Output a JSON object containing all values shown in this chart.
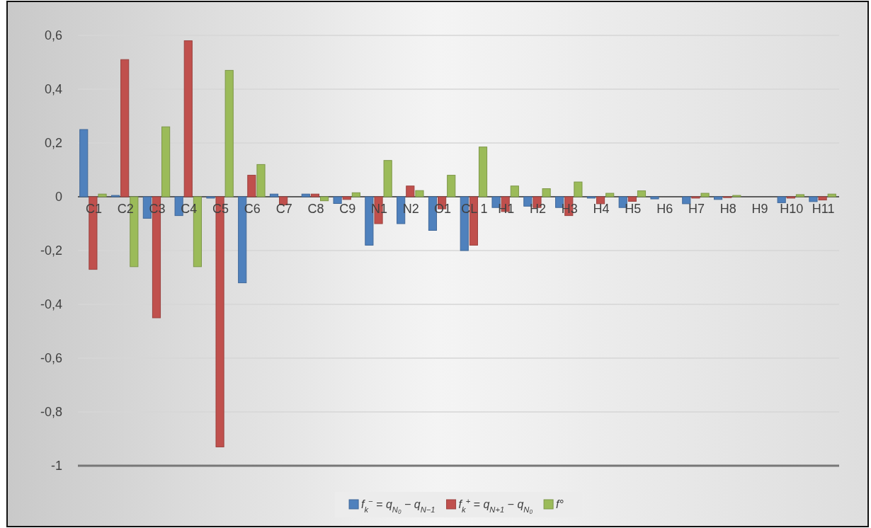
{
  "chart_data": {
    "type": "bar",
    "categories": [
      "C1",
      "C2",
      "C3",
      "C4",
      "C5",
      "C6",
      "C7",
      "C8",
      "C9",
      "N1",
      "N2",
      "O1",
      "CL 1",
      "H1",
      "H2",
      "H3",
      "H4",
      "H5",
      "H6",
      "H7",
      "H8",
      "H9",
      "H10",
      "H11"
    ],
    "series": [
      {
        "name": "f$_{k}$$^{−}$ = q$_{N₀}$ − q$_{N−1}$",
        "color": "#4f81bd",
        "values": [
          0.25,
          0.005,
          -0.08,
          -0.07,
          -0.005,
          -0.32,
          0.01,
          0.01,
          -0.025,
          -0.18,
          -0.1,
          -0.125,
          -0.2,
          -0.04,
          -0.035,
          -0.04,
          -0.005,
          -0.04,
          -0.008,
          -0.026,
          -0.01,
          0,
          -0.022,
          -0.018
        ]
      },
      {
        "name": "f$_{k}$$^{+}$ = q$_{N+1}$ − q$_{N₀}$",
        "color": "#c0504d",
        "values": [
          -0.27,
          0.51,
          -0.45,
          0.58,
          -0.93,
          0.08,
          -0.03,
          0.01,
          -0.01,
          -0.1,
          0.04,
          -0.045,
          -0.18,
          -0.055,
          -0.04,
          -0.07,
          -0.026,
          -0.017,
          0,
          -0.005,
          -0.003,
          0,
          -0.005,
          -0.012
        ]
      },
      {
        "name": "f°",
        "color": "#9bbb59",
        "values": [
          0.01,
          -0.26,
          0.26,
          -0.26,
          0.47,
          0.12,
          0,
          -0.015,
          0.015,
          0.135,
          0.023,
          0.08,
          0.185,
          0.04,
          0.03,
          0.055,
          0.013,
          0.022,
          0,
          0.013,
          0.005,
          0,
          0.008,
          0.01
        ]
      }
    ],
    "ylim": [
      -1,
      0.6
    ],
    "yticks": [
      {
        "value": -1,
        "label": "-1"
      },
      {
        "value": -0.8,
        "label": "-0,8"
      },
      {
        "value": -0.6,
        "label": "-0,6"
      },
      {
        "value": -0.4,
        "label": "-0,4"
      },
      {
        "value": -0.2,
        "label": "-0,2"
      },
      {
        "value": 0,
        "label": "0"
      },
      {
        "value": 0.2,
        "label": "0,2"
      },
      {
        "value": 0.4,
        "label": "0,4"
      },
      {
        "value": 0.6,
        "label": "0,6"
      }
    ],
    "grid": "y",
    "legend": "bottom"
  }
}
